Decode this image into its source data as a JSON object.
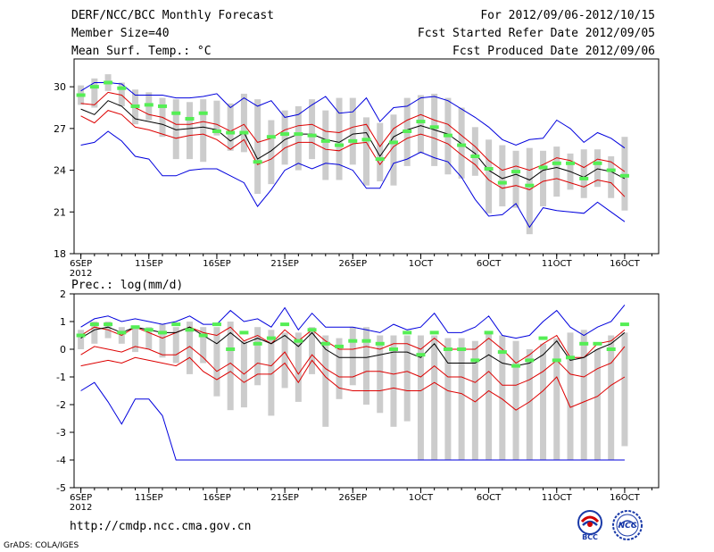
{
  "header": {
    "title": "DERF/NCC/BCC Monthly Forecast",
    "member": "Member Size=40",
    "variable": "Mean Surf. Temp.: °C",
    "period": "For 2012/09/06-2012/10/15",
    "started": "Fcst Started Refer Date 2012/09/05",
    "produced": "Fcst Produced Date 2012/09/06"
  },
  "footer": {
    "url": "http://cmdp.ncc.cma.gov.cn",
    "grads": "GrADS: COLA/IGES",
    "logo_bcc": "BCC",
    "logo_ncc": "NCC"
  },
  "colors": {
    "max": "#0000dd",
    "sd": "#dd0000",
    "mean": "#000000",
    "box": "#cccccc",
    "median": "#55ee55"
  },
  "chart_data": [
    {
      "type": "line",
      "title": "Mean Surf. Temp.: °C",
      "xlabel": "",
      "ylabel": "",
      "ylim": [
        18,
        32
      ],
      "yticks": [
        18,
        21,
        24,
        27,
        30
      ],
      "xticks": [
        {
          "day": 1,
          "label": "6SEP"
        },
        {
          "day": 6,
          "label": "11SEP"
        },
        {
          "day": 11,
          "label": "16SEP"
        },
        {
          "day": 16,
          "label": "21SEP"
        },
        {
          "day": 21,
          "label": "26SEP"
        },
        {
          "day": 26,
          "label": "1OCT"
        },
        {
          "day": 31,
          "label": "6OCT"
        },
        {
          "day": 36,
          "label": "11OCT"
        },
        {
          "day": 41,
          "label": "16OCT"
        }
      ],
      "year_label": "2012",
      "series": [
        {
          "name": "max",
          "values": [
            29.7,
            30.3,
            30.3,
            30.2,
            29.4,
            29.4,
            29.4,
            29.2,
            29.2,
            29.3,
            29.5,
            28.5,
            29.2,
            28.6,
            29.0,
            27.8,
            28.0,
            28.7,
            29.3,
            28.1,
            28.2,
            29.2,
            27.5,
            28.5,
            28.6,
            29.2,
            29.3,
            29.0,
            28.4,
            27.8,
            27.1,
            26.2,
            25.8,
            26.2,
            26.3,
            27.6,
            27.0,
            26.0,
            26.7,
            26.3,
            25.6
          ]
        },
        {
          "name": "mean_plus_sd",
          "values": [
            28.8,
            28.7,
            29.6,
            29.4,
            28.5,
            28.0,
            27.8,
            27.3,
            27.3,
            27.5,
            27.3,
            26.8,
            27.3,
            26.0,
            26.3,
            26.9,
            27.2,
            27.3,
            26.8,
            26.7,
            27.1,
            27.3,
            25.7,
            27.0,
            27.6,
            28.0,
            27.6,
            27.3,
            26.5,
            25.7,
            24.7,
            24.0,
            24.3,
            24.0,
            24.4,
            24.9,
            24.7,
            24.2,
            24.8,
            24.6,
            23.9
          ]
        },
        {
          "name": "mean",
          "values": [
            28.4,
            28.0,
            29.0,
            28.6,
            27.7,
            27.5,
            27.3,
            26.9,
            27.0,
            27.1,
            26.9,
            26.1,
            26.7,
            24.8,
            25.4,
            26.2,
            26.6,
            26.6,
            26.2,
            26.0,
            26.6,
            26.7,
            25.0,
            26.4,
            26.9,
            27.2,
            26.9,
            26.6,
            25.9,
            25.2,
            24.0,
            23.4,
            23.7,
            23.3,
            24.0,
            24.2,
            23.9,
            23.5,
            24.1,
            23.9,
            23.4
          ]
        },
        {
          "name": "mean_minus_sd",
          "values": [
            27.9,
            27.4,
            28.3,
            28.0,
            27.1,
            26.9,
            26.6,
            26.3,
            26.5,
            26.6,
            26.2,
            25.5,
            26.2,
            24.4,
            24.8,
            25.6,
            26.0,
            26.0,
            25.5,
            25.4,
            25.9,
            26.0,
            24.4,
            25.7,
            26.3,
            26.6,
            26.3,
            25.9,
            25.1,
            24.4,
            23.3,
            22.7,
            22.9,
            22.6,
            23.2,
            23.4,
            23.1,
            22.8,
            23.3,
            23.1,
            22.1
          ]
        },
        {
          "name": "min",
          "values": [
            25.8,
            26.0,
            26.8,
            26.1,
            25.0,
            24.8,
            23.6,
            23.6,
            24.0,
            24.1,
            24.1,
            23.6,
            23.1,
            21.4,
            22.6,
            24.0,
            24.5,
            24.1,
            24.5,
            24.4,
            24.0,
            22.7,
            22.7,
            24.5,
            24.8,
            25.3,
            24.9,
            24.6,
            23.5,
            21.9,
            20.7,
            20.8,
            21.6,
            19.9,
            21.3,
            21.1,
            21.0,
            20.9,
            21.7,
            21.0,
            20.3
          ]
        }
      ],
      "boxes": [
        [
          28.7,
          30.1
        ],
        [
          28.5,
          30.6
        ],
        [
          29.7,
          30.9
        ],
        [
          28.6,
          30.3
        ],
        [
          27.3,
          29.8
        ],
        [
          27.6,
          29.6
        ],
        [
          26.4,
          29.2
        ],
        [
          24.8,
          29.1
        ],
        [
          24.8,
          28.9
        ],
        [
          24.6,
          29.1
        ],
        [
          26.5,
          29.0
        ],
        [
          25.4,
          28.8
        ],
        [
          25.3,
          29.5
        ],
        [
          22.3,
          29.1
        ],
        [
          23.0,
          27.6
        ],
        [
          24.4,
          28.3
        ],
        [
          24.0,
          28.6
        ],
        [
          24.8,
          29.1
        ],
        [
          23.3,
          28.3
        ],
        [
          23.3,
          29.2
        ],
        [
          24.4,
          29.2
        ],
        [
          22.9,
          27.8
        ],
        [
          23.2,
          27.4
        ],
        [
          22.9,
          28.0
        ],
        [
          24.3,
          29.2
        ],
        [
          25.2,
          29.4
        ],
        [
          24.3,
          29.5
        ],
        [
          23.7,
          29.2
        ],
        [
          23.4,
          28.5
        ],
        [
          23.6,
          27.1
        ],
        [
          20.9,
          26.2
        ],
        [
          21.4,
          25.8
        ],
        [
          21.3,
          25.4
        ],
        [
          19.4,
          25.6
        ],
        [
          21.4,
          25.4
        ],
        [
          22.1,
          25.7
        ],
        [
          22.6,
          25.2
        ],
        [
          22.0,
          25.5
        ],
        [
          22.8,
          25.5
        ],
        [
          22.0,
          25.0
        ],
        [
          21.1,
          26.4
        ]
      ],
      "median": [
        29.4,
        30.0,
        30.3,
        29.9,
        28.6,
        28.7,
        28.6,
        28.1,
        27.7,
        28.1,
        26.8,
        26.7,
        26.7,
        24.6,
        26.4,
        26.6,
        26.6,
        26.5,
        26.1,
        25.8,
        26.1,
        26.2,
        24.8,
        26.0,
        26.8,
        27.5,
        27.1,
        26.5,
        25.8,
        25.0,
        24.1,
        23.1,
        23.9,
        22.9,
        24.2,
        24.5,
        24.5,
        23.4,
        24.5,
        24.0,
        23.6
      ]
    },
    {
      "type": "line",
      "title": "Prec.: log(mm/d)",
      "xlabel": "",
      "ylabel": "",
      "ylim": [
        -5,
        2
      ],
      "yticks": [
        -5,
        -4,
        -3,
        -2,
        -1,
        0,
        1,
        2
      ],
      "xticks": [
        {
          "day": 1,
          "label": "6SEP"
        },
        {
          "day": 6,
          "label": "11SEP"
        },
        {
          "day": 11,
          "label": "16SEP"
        },
        {
          "day": 16,
          "label": "21SEP"
        },
        {
          "day": 21,
          "label": "26SEP"
        },
        {
          "day": 26,
          "label": "1OCT"
        },
        {
          "day": 31,
          "label": "6OCT"
        },
        {
          "day": 36,
          "label": "11OCT"
        },
        {
          "day": 41,
          "label": "16OCT"
        }
      ],
      "year_label": "2012",
      "series": [
        {
          "name": "max",
          "values": [
            0.8,
            1.1,
            1.2,
            1.0,
            1.1,
            1.0,
            0.9,
            1.0,
            1.2,
            0.9,
            0.9,
            1.4,
            1.0,
            1.1,
            0.8,
            1.5,
            0.7,
            1.3,
            0.8,
            0.8,
            0.8,
            0.7,
            0.6,
            0.9,
            0.7,
            0.8,
            1.3,
            0.6,
            0.6,
            0.8,
            1.2,
            0.5,
            0.4,
            0.5,
            1.0,
            1.4,
            0.8,
            0.5,
            0.8,
            1.0,
            1.6
          ]
        },
        {
          "name": "mean_plus_sd",
          "values": [
            0.5,
            0.8,
            0.7,
            0.5,
            0.8,
            0.6,
            0.4,
            0.6,
            0.8,
            0.6,
            0.5,
            0.8,
            0.3,
            0.5,
            0.2,
            0.7,
            0.3,
            0.7,
            0.3,
            0.0,
            0.0,
            0.1,
            0.0,
            0.2,
            0.2,
            0.0,
            0.4,
            0.0,
            0.0,
            0.0,
            0.4,
            0.0,
            -0.5,
            -0.2,
            0.2,
            0.5,
            -0.3,
            -0.3,
            0.2,
            0.3,
            0.7
          ]
        },
        {
          "name": "mean",
          "values": [
            0.4,
            0.7,
            0.8,
            0.6,
            0.8,
            0.7,
            0.6,
            0.6,
            0.8,
            0.5,
            0.2,
            0.6,
            0.2,
            0.4,
            0.2,
            0.5,
            0.1,
            0.6,
            0.0,
            -0.3,
            -0.3,
            -0.3,
            -0.2,
            -0.1,
            -0.1,
            -0.3,
            0.2,
            -0.5,
            -0.5,
            -0.5,
            -0.2,
            -0.5,
            -0.6,
            -0.5,
            -0.2,
            0.3,
            -0.4,
            -0.3,
            0.0,
            0.2,
            0.6
          ]
        },
        {
          "name": "mean_minus_sd",
          "values": [
            -0.2,
            0.1,
            0.0,
            -0.1,
            0.1,
            0.0,
            -0.2,
            -0.2,
            0.1,
            -0.3,
            -0.8,
            -0.5,
            -0.9,
            -0.5,
            -0.6,
            -0.1,
            -0.9,
            -0.2,
            -0.7,
            -1.0,
            -1.0,
            -0.8,
            -0.8,
            -0.9,
            -0.8,
            -1.0,
            -0.6,
            -1.0,
            -1.0,
            -1.2,
            -0.8,
            -1.3,
            -1.3,
            -1.1,
            -0.8,
            -0.4,
            -0.9,
            -1.0,
            -0.7,
            -0.5,
            0.1
          ]
        },
        {
          "name": "min",
          "values": [
            -1.5,
            -1.2,
            -1.9,
            -2.7,
            -1.8,
            -1.8,
            -2.4,
            -4.0,
            -4.0,
            -4.0,
            -4.0,
            -4.0,
            -4.0,
            -4.0,
            -4.0,
            -4.0,
            -4.0,
            -4.0,
            -4.0,
            -4.0,
            -4.0,
            -4.0,
            -4.0,
            -4.0,
            -4.0,
            -4.0,
            -4.0,
            -4.0,
            -4.0,
            -4.0,
            -4.0,
            -4.0,
            -4.0,
            -4.0,
            -4.0,
            -4.0,
            -4.0,
            -4.0,
            -4.0,
            -4.0,
            -4.0
          ]
        },
        {
          "name": "sd_lower",
          "values": [
            -0.6,
            -0.5,
            -0.4,
            -0.5,
            -0.3,
            -0.4,
            -0.5,
            -0.6,
            -0.3,
            -0.8,
            -1.1,
            -0.8,
            -1.2,
            -0.9,
            -0.9,
            -0.5,
            -1.2,
            -0.4,
            -1.0,
            -1.4,
            -1.5,
            -1.5,
            -1.5,
            -1.4,
            -1.5,
            -1.5,
            -1.2,
            -1.5,
            -1.6,
            -1.9,
            -1.5,
            -1.8,
            -2.2,
            -1.9,
            -1.5,
            -1.0,
            -2.1,
            -1.9,
            -1.7,
            -1.3,
            -1.0
          ]
        }
      ],
      "boxes": [
        [
          0.0,
          0.7
        ],
        [
          0.2,
          1.0
        ],
        [
          0.4,
          1.0
        ],
        [
          0.2,
          0.8
        ],
        [
          -0.1,
          0.8
        ],
        [
          0.0,
          0.8
        ],
        [
          -0.3,
          0.9
        ],
        [
          -0.5,
          0.8
        ],
        [
          -0.9,
          1.0
        ],
        [
          -0.5,
          0.8
        ],
        [
          -1.7,
          0.8
        ],
        [
          -2.2,
          1.0
        ],
        [
          -2.1,
          0.3
        ],
        [
          -1.3,
          0.8
        ],
        [
          -2.4,
          0.7
        ],
        [
          -1.4,
          0.6
        ],
        [
          -1.9,
          0.6
        ],
        [
          -0.9,
          0.8
        ],
        [
          -2.8,
          0.5
        ],
        [
          -1.8,
          0.4
        ],
        [
          -1.3,
          0.8
        ],
        [
          -2.0,
          0.8
        ],
        [
          -2.3,
          0.5
        ],
        [
          -2.8,
          0.5
        ],
        [
          -2.6,
          0.5
        ],
        [
          -4.0,
          0.5
        ],
        [
          -4.0,
          0.5
        ],
        [
          -4.0,
          0.4
        ],
        [
          -4.0,
          0.4
        ],
        [
          -4.0,
          0.3
        ],
        [
          -4.0,
          0.6
        ],
        [
          -4.0,
          0.5
        ],
        [
          -4.0,
          0.3
        ],
        [
          -4.0,
          0.0
        ],
        [
          -4.0,
          0.2
        ],
        [
          -4.0,
          0.4
        ],
        [
          -4.0,
          0.6
        ],
        [
          -4.0,
          0.7
        ],
        [
          -4.0,
          0.0
        ],
        [
          -4.0,
          0.5
        ],
        [
          -3.5,
          0.6
        ]
      ],
      "median": [
        0.5,
        0.9,
        0.9,
        0.6,
        0.8,
        0.7,
        0.6,
        0.9,
        0.7,
        0.5,
        0.9,
        0.0,
        0.6,
        0.2,
        0.4,
        0.9,
        0.3,
        0.7,
        0.2,
        0.1,
        0.3,
        0.3,
        0.2,
        0.0,
        0.6,
        -0.2,
        0.6,
        0.0,
        0.0,
        -0.4,
        0.6,
        -0.1,
        -0.6,
        -0.4,
        0.4,
        -0.4,
        -0.3,
        0.2,
        0.2,
        0.0,
        0.9
      ]
    }
  ]
}
